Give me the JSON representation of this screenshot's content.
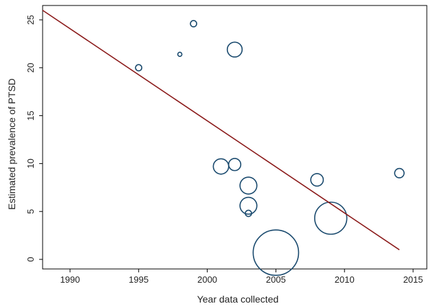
{
  "chart_data": {
    "type": "scatter",
    "title": "",
    "xlabel": "Year data collected",
    "ylabel": "Estimated prevalence of PTSD",
    "xlim": [
      1988,
      2016
    ],
    "ylim": [
      -1,
      26.5
    ],
    "xticks": [
      1990,
      1995,
      2000,
      2005,
      2010,
      2015
    ],
    "yticks": [
      0,
      5,
      10,
      15,
      20,
      25
    ],
    "grid": false,
    "legend": "none",
    "points": [
      {
        "x": 1995,
        "y": 20.0,
        "weight": 0.8
      },
      {
        "x": 1998,
        "y": 21.4,
        "weight": 0.3
      },
      {
        "x": 1999,
        "y": 24.6,
        "weight": 0.8
      },
      {
        "x": 2002,
        "y": 21.9,
        "weight": 4.5
      },
      {
        "x": 2001,
        "y": 9.7,
        "weight": 4.8
      },
      {
        "x": 2002,
        "y": 9.9,
        "weight": 3.0
      },
      {
        "x": 2003,
        "y": 7.7,
        "weight": 5.8
      },
      {
        "x": 2003,
        "y": 5.6,
        "weight": 5.8
      },
      {
        "x": 2003,
        "y": 4.8,
        "weight": 0.8
      },
      {
        "x": 2008,
        "y": 8.3,
        "weight": 3.2
      },
      {
        "x": 2014,
        "y": 9.0,
        "weight": 1.8
      },
      {
        "x": 2009,
        "y": 4.3,
        "weight": 21.0
      },
      {
        "x": 2005,
        "y": 0.7,
        "weight": 42.0
      }
    ],
    "fit_line": {
      "x": [
        1988,
        2014
      ],
      "y": [
        26.0,
        1.0
      ]
    },
    "colors": {
      "marker": "#1a4a6e",
      "fit": "#8b1a1a",
      "axis": "#000000"
    }
  }
}
